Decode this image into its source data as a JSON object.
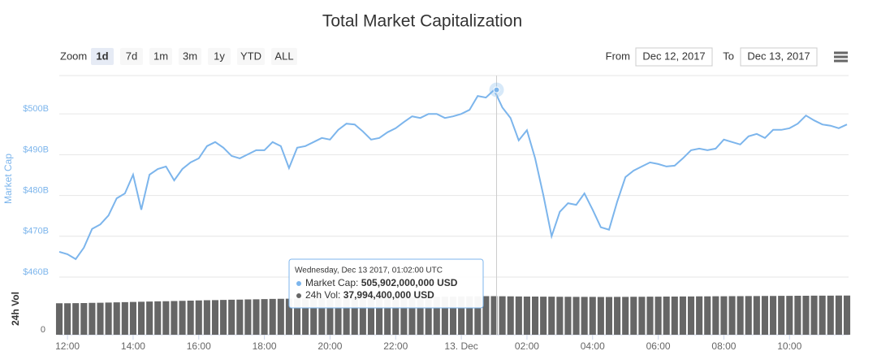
{
  "chart_data": {
    "type": "line",
    "title": "Total Market Capitalization",
    "x": [
      "2017-12-12T11:45",
      "2017-12-12T12:00",
      "2017-12-12T12:15",
      "2017-12-12T12:30",
      "2017-12-12T12:45",
      "2017-12-12T13:00",
      "2017-12-12T13:15",
      "2017-12-12T13:30",
      "2017-12-12T13:45",
      "2017-12-12T14:00",
      "2017-12-12T14:15",
      "2017-12-12T14:30",
      "2017-12-12T14:45",
      "2017-12-12T15:00",
      "2017-12-12T15:15",
      "2017-12-12T15:30",
      "2017-12-12T15:45",
      "2017-12-12T16:00",
      "2017-12-12T16:15",
      "2017-12-12T16:30",
      "2017-12-12T16:45",
      "2017-12-12T17:00",
      "2017-12-12T17:15",
      "2017-12-12T17:30",
      "2017-12-12T17:45",
      "2017-12-12T18:00",
      "2017-12-12T18:15",
      "2017-12-12T18:30",
      "2017-12-12T18:45",
      "2017-12-12T19:00",
      "2017-12-12T19:15",
      "2017-12-12T19:30",
      "2017-12-12T19:45",
      "2017-12-12T20:00",
      "2017-12-12T20:15",
      "2017-12-12T20:30",
      "2017-12-12T20:45",
      "2017-12-12T21:00",
      "2017-12-12T21:15",
      "2017-12-12T21:30",
      "2017-12-12T21:45",
      "2017-12-12T22:00",
      "2017-12-12T22:15",
      "2017-12-12T22:30",
      "2017-12-12T22:45",
      "2017-12-12T23:00",
      "2017-12-12T23:15",
      "2017-12-12T23:30",
      "2017-12-12T23:45",
      "2017-12-13T00:00",
      "2017-12-13T00:15",
      "2017-12-13T00:30",
      "2017-12-13T00:45",
      "2017-12-13T01:00",
      "2017-12-13T01:15",
      "2017-12-13T01:30",
      "2017-12-13T01:45",
      "2017-12-13T02:00",
      "2017-12-13T02:15",
      "2017-12-13T02:30",
      "2017-12-13T02:45",
      "2017-12-13T03:00",
      "2017-12-13T03:15",
      "2017-12-13T03:30",
      "2017-12-13T03:45",
      "2017-12-13T04:00",
      "2017-12-13T04:15",
      "2017-12-13T04:30",
      "2017-12-13T04:45",
      "2017-12-13T05:00",
      "2017-12-13T05:15",
      "2017-12-13T05:30",
      "2017-12-13T05:45",
      "2017-12-13T06:00",
      "2017-12-13T06:15",
      "2017-12-13T06:30",
      "2017-12-13T06:45",
      "2017-12-13T07:00",
      "2017-12-13T07:15",
      "2017-12-13T07:30",
      "2017-12-13T07:45",
      "2017-12-13T08:00",
      "2017-12-13T08:15",
      "2017-12-13T08:30",
      "2017-12-13T08:45",
      "2017-12-13T09:00",
      "2017-12-13T09:15",
      "2017-12-13T09:30",
      "2017-12-13T09:45",
      "2017-12-13T10:00",
      "2017-12-13T10:15",
      "2017-12-13T10:30",
      "2017-12-13T10:45",
      "2017-12-13T11:00",
      "2017-12-13T11:15",
      "2017-12-13T11:30",
      "2017-12-13T11:45"
    ],
    "xlim": [
      "2017-12-12T11:45",
      "2017-12-13T11:45"
    ],
    "xticks": [
      {
        "value": "2017-12-12T12:00",
        "label": "12:00"
      },
      {
        "value": "2017-12-12T14:00",
        "label": "14:00"
      },
      {
        "value": "2017-12-12T16:00",
        "label": "16:00"
      },
      {
        "value": "2017-12-12T18:00",
        "label": "18:00"
      },
      {
        "value": "2017-12-12T20:00",
        "label": "20:00"
      },
      {
        "value": "2017-12-12T22:00",
        "label": "22:00"
      },
      {
        "value": "2017-12-13T00:00",
        "label": "13. Dec"
      },
      {
        "value": "2017-12-13T02:00",
        "label": "02:00"
      },
      {
        "value": "2017-12-13T04:00",
        "label": "04:00"
      },
      {
        "value": "2017-12-13T06:00",
        "label": "06:00"
      },
      {
        "value": "2017-12-13T08:00",
        "label": "08:00"
      },
      {
        "value": "2017-12-13T10:00",
        "label": "10:00"
      }
    ],
    "y_label": "Market Cap",
    "ylim": [
      458.6,
      509.4
    ],
    "yticks": [
      {
        "value": 460,
        "label": "$460B"
      },
      {
        "value": 470,
        "label": "$470B"
      },
      {
        "value": 480,
        "label": "$480B"
      },
      {
        "value": 490,
        "label": "$490B"
      },
      {
        "value": 500,
        "label": "$500B"
      }
    ],
    "y2_label": "24h Vol",
    "y2lim": [
      0,
      40
    ],
    "y2ticks": [
      0
    ],
    "grid": true,
    "series": [
      {
        "name": "Market Cap",
        "type": "line",
        "color": "#7cb5ec",
        "values": [
          466.2,
          465.6,
          464.4,
          467.2,
          471.8,
          472.9,
          475.1,
          479.3,
          480.5,
          485.1,
          476.5,
          485.1,
          486.5,
          487.1,
          483.7,
          486.5,
          488.1,
          489.1,
          492.1,
          493.1,
          491.7,
          489.7,
          489.1,
          490.1,
          491.1,
          491.1,
          493.1,
          492.1,
          486.7,
          491.7,
          492.1,
          493.1,
          494.1,
          493.7,
          496.1,
          497.6,
          497.4,
          495.7,
          493.7,
          494.1,
          495.5,
          496.5,
          498.0,
          499.4,
          499.0,
          500.0,
          500.0,
          499.0,
          499.4,
          500.0,
          501.0,
          504.4,
          504.0,
          505.9,
          501.6,
          499.0,
          493.5,
          496.0,
          489.1,
          480.1,
          470.0,
          476.0,
          478.1,
          477.7,
          480.5,
          476.5,
          472.2,
          471.6,
          478.5,
          484.5,
          486.1,
          487.1,
          488.1,
          487.7,
          487.1,
          487.3,
          489.1,
          491.1,
          491.5,
          491.1,
          491.5,
          493.7,
          493.1,
          492.5,
          494.5,
          495.1,
          494.1,
          496.1,
          496.1,
          496.5,
          497.6,
          499.6,
          498.4,
          497.4,
          497.1,
          496.5,
          497.4
        ]
      },
      {
        "name": "24h Vol",
        "type": "column",
        "color": "#666666",
        "axis": "y2",
        "values": [
          31.0,
          31.0,
          31.1,
          31.2,
          31.4,
          31.5,
          31.7,
          31.9,
          32.1,
          32.3,
          32.5,
          32.7,
          32.9,
          33.0,
          33.2,
          33.4,
          33.6,
          33.8,
          34.0,
          34.1,
          34.3,
          34.5,
          34.6,
          34.8,
          34.9,
          35.1,
          35.3,
          35.4,
          35.5,
          35.6,
          35.8,
          35.9,
          36.0,
          36.1,
          36.2,
          36.3,
          36.4,
          36.5,
          36.6,
          36.7,
          36.8,
          36.9,
          37.0,
          37.1,
          37.2,
          37.3,
          37.4,
          37.5,
          37.6,
          37.7,
          37.8,
          37.9,
          38.0,
          38.0,
          37.9,
          37.8,
          37.7,
          37.6,
          37.6,
          37.5,
          37.5,
          37.4,
          37.4,
          37.3,
          37.3,
          37.3,
          37.2,
          37.2,
          37.3,
          37.3,
          37.4,
          37.4,
          37.5,
          37.5,
          37.6,
          37.6,
          37.7,
          37.7,
          37.8,
          37.8,
          37.9,
          37.9,
          38.0,
          38.0,
          38.1,
          38.1,
          38.2,
          38.2,
          38.3,
          38.3,
          38.4,
          38.4,
          38.5,
          38.5,
          38.5,
          38.6,
          38.6
        ]
      }
    ],
    "tooltip": {
      "header": "Wednesday, Dec 13 2017, 01:02:00 UTC",
      "label_1": "Market Cap:",
      "value_1": "505,902,000,000 USD",
      "label_2": "24h Vol:",
      "value_2": "37,994,400,000 USD"
    }
  },
  "controls": {
    "zoom_label": "Zoom",
    "zoom_buttons": [
      "1d",
      "7d",
      "1m",
      "3m",
      "1y",
      "YTD",
      "ALL"
    ],
    "from_label": "From",
    "from_value": "Dec 12, 2017",
    "to_label": "To",
    "to_value": "Dec 13, 2017"
  }
}
